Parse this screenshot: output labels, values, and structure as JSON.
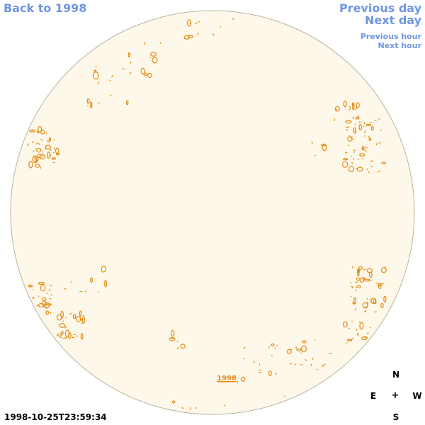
{
  "nav": {
    "back_label": "Back to 1998",
    "previous_day_label": "Previous day",
    "next_day_label": "Next day",
    "previous_hour_label": "Previous hour",
    "next_hour_label": "Next hour"
  },
  "disk": {
    "year_label": "1998",
    "fill_color": "#fdf8ea",
    "edge_color": "#b9b39e",
    "contour_color": "#e58a12"
  },
  "compass": {
    "north": "N",
    "south": "S",
    "east": "E",
    "west": "W",
    "center": "+"
  },
  "timestamp": "1998-10-25T23:59:34"
}
